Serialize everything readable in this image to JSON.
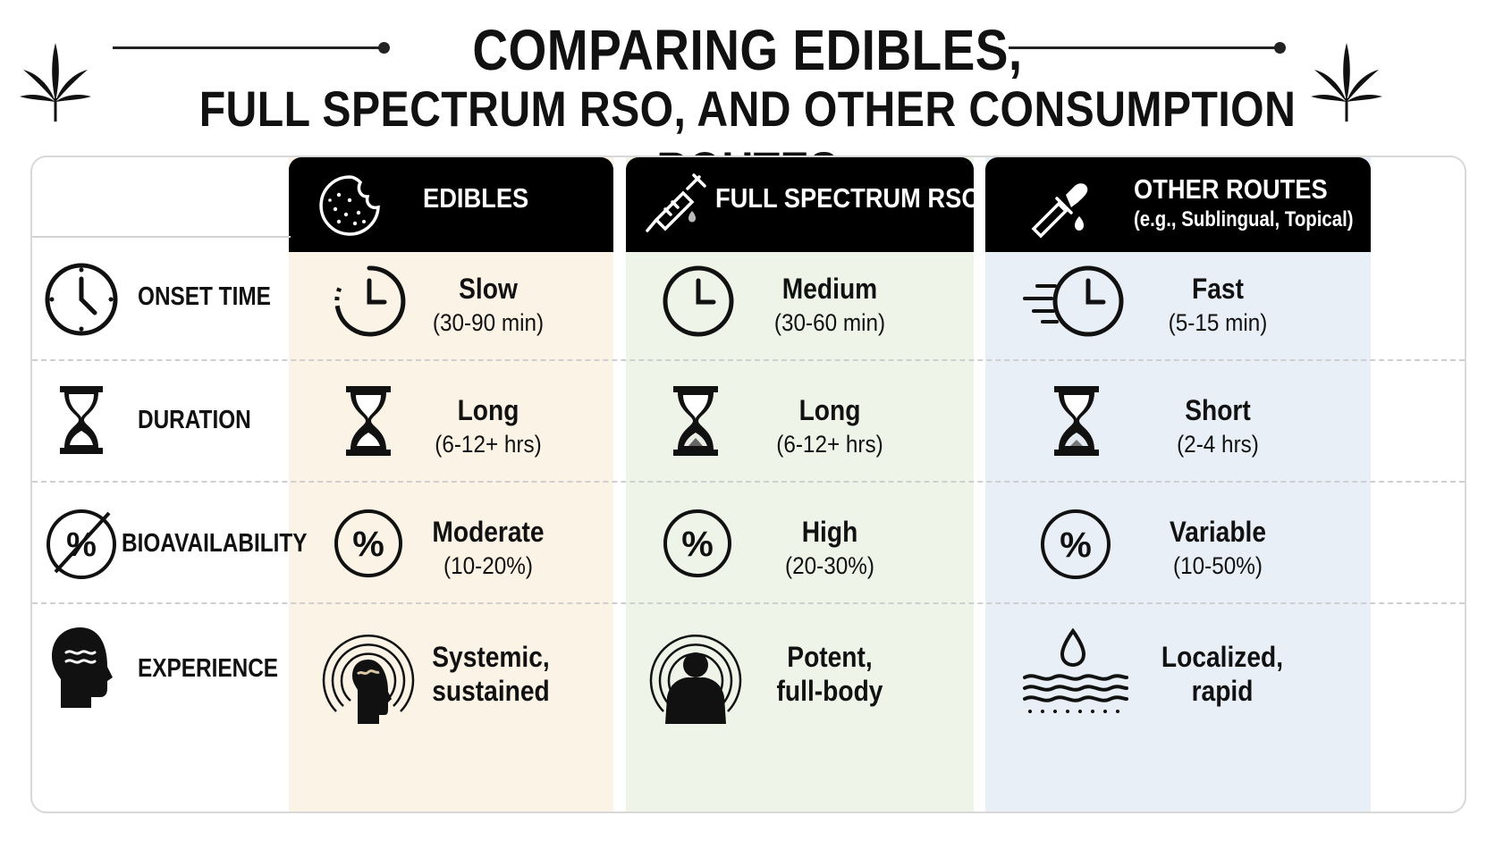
{
  "title": {
    "line1": "COMPARING EDIBLES,",
    "line2": "FULL SPECTRUM RSO, AND OTHER CONSUMPTION ROUTES"
  },
  "columns": [
    {
      "label": "EDIBLES",
      "sub": "",
      "icon": "cookie-icon",
      "tint": "#fbf3e6"
    },
    {
      "label": "FULL SPECTRUM RSO",
      "sub": "",
      "icon": "syringe-icon",
      "tint": "#eef4e8"
    },
    {
      "label": "OTHER ROUTES",
      "sub": "(e.g., Sublingual, Topical)",
      "icon": "dropper-icon",
      "tint": "#e8eff6"
    }
  ],
  "rows": [
    {
      "label": "ONSET TIME",
      "icon": "clock-icon",
      "cells": [
        {
          "main": "Slow",
          "sub": "(30-90 min)"
        },
        {
          "main": "Medium",
          "sub": "(30-60 min)"
        },
        {
          "main": "Fast",
          "sub": "(5-15 min)"
        }
      ]
    },
    {
      "label": "DURATION",
      "icon": "hourglass-icon",
      "cells": [
        {
          "main": "Long",
          "sub": "(6-12+ hrs)"
        },
        {
          "main": "Long",
          "sub": "(6-12+ hrs)"
        },
        {
          "main": "Short",
          "sub": "(2-4 hrs)"
        }
      ]
    },
    {
      "label": "BIOAVAILABILITY",
      "icon": "percent-icon",
      "cells": [
        {
          "main": "Moderate",
          "sub": "(10-20%)"
        },
        {
          "main": "High",
          "sub": "(20-30%)"
        },
        {
          "main": "Variable",
          "sub": "(10-50%)"
        }
      ]
    },
    {
      "label": "EXPERIENCE",
      "icon": "head-icon",
      "cells": [
        {
          "main": "Systemic,",
          "sub": "sustained"
        },
        {
          "main": "Potent,",
          "sub": "full-body"
        },
        {
          "main": "Localized,",
          "sub": "rapid"
        }
      ]
    }
  ]
}
